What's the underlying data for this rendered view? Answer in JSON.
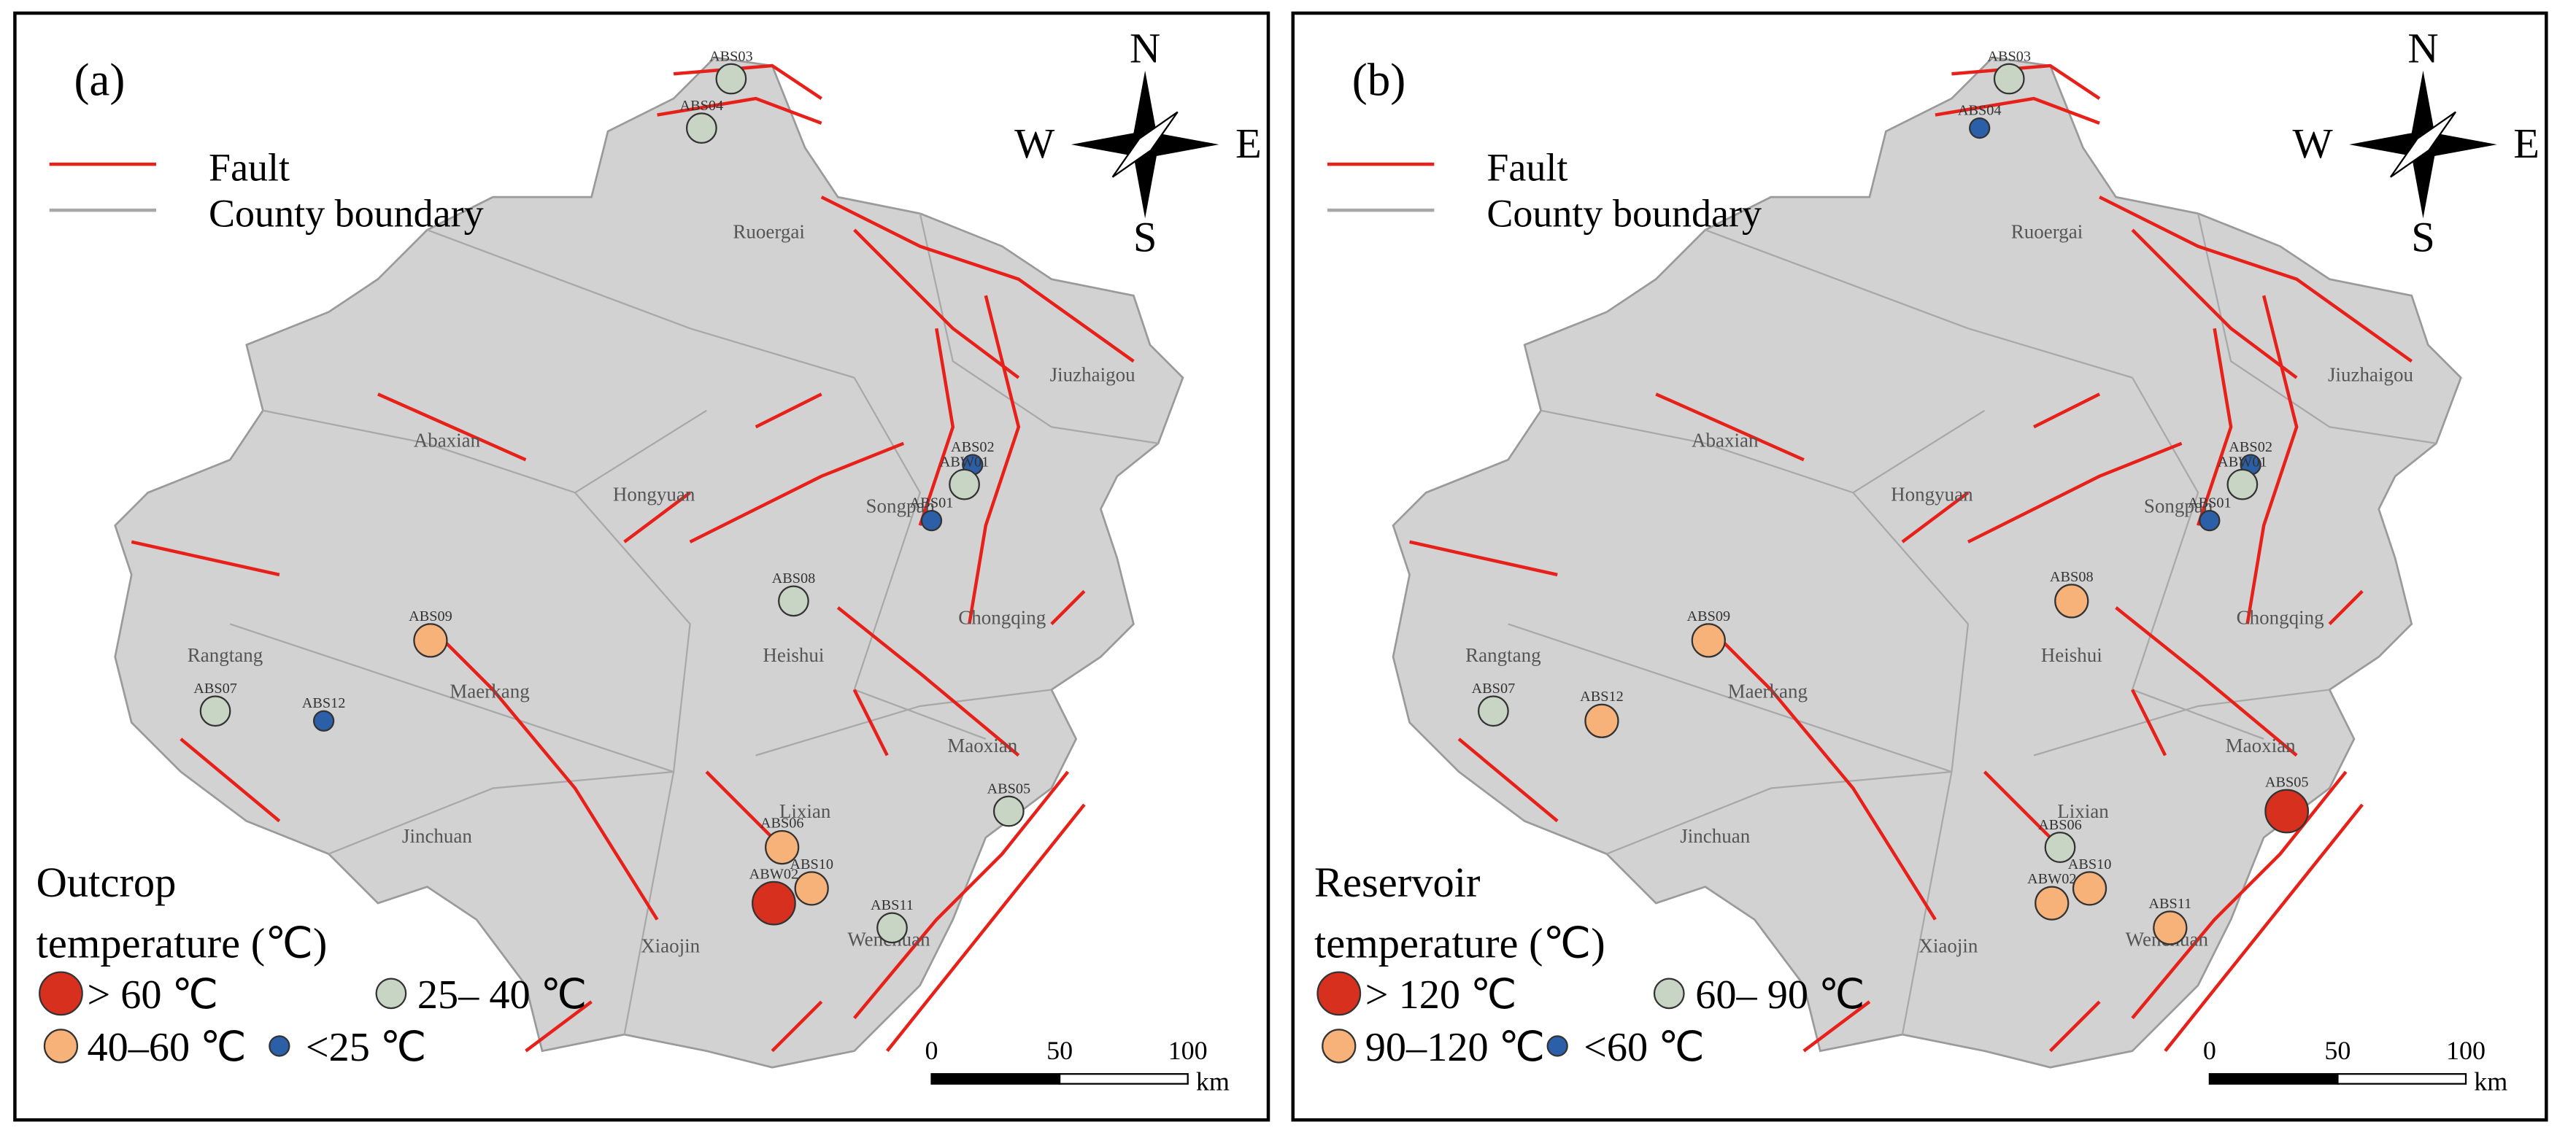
{
  "panels": [
    {
      "label": "(a)",
      "legend": [
        "Fault",
        "County boundary"
      ],
      "compass": [
        "N",
        "E",
        "S",
        "W"
      ],
      "places": [
        "Ruoergai",
        "Jiuzhaigou",
        "Abaxian",
        "Hongyuan",
        "Songpan",
        "Chongqing",
        "Heishui",
        "Rangtang",
        "Maerkang",
        "Maoxian",
        "Lixian",
        "Jinchuan",
        "Xiaojin",
        "Wenchuan"
      ],
      "stations": [
        {
          "label": "ABS03",
          "class": 1
        },
        {
          "label": "ABS04",
          "class": 1
        },
        {
          "label": "ABS02",
          "class": 3
        },
        {
          "label": "ABW01",
          "class": 1
        },
        {
          "label": "ABS01",
          "class": 3
        },
        {
          "label": "ABS08",
          "class": 1
        },
        {
          "label": "ABS09",
          "class": 2
        },
        {
          "label": "ABS07",
          "class": 1
        },
        {
          "label": "ABS12",
          "class": 3
        },
        {
          "label": "ABS05",
          "class": 1
        },
        {
          "label": "ABS06",
          "class": 2
        },
        {
          "label": "ABW02",
          "class": 0
        },
        {
          "label": "ABS10",
          "class": 2
        },
        {
          "label": "ABS11",
          "class": 1
        }
      ],
      "class_title": [
        "Outcrop",
        "temperature (℃)"
      ],
      "classes": [
        {
          "label": "> 60 ℃",
          "color": "#d7301f"
        },
        {
          "label": "25– 40 ℃",
          "color": "#c9d5c4"
        },
        {
          "label": "40–60 ℃",
          "color": "#f7b27a"
        },
        {
          "label": "<25 ℃",
          "color": "#2b5fa8"
        }
      ],
      "scale": {
        "ticks": [
          0,
          50,
          100
        ],
        "unit": "km"
      }
    },
    {
      "label": "(b)",
      "legend": [
        "Fault",
        "County boundary"
      ],
      "compass": [
        "N",
        "E",
        "S",
        "W"
      ],
      "places": [
        "Ruoergai",
        "Jiuzhaigou",
        "Abaxian",
        "Hongyuan",
        "Songpan",
        "Chongqing",
        "Heishui",
        "Rangtang",
        "Maerkang",
        "Maoxian",
        "Lixian",
        "Jinchuan",
        "Xiaojin",
        "Wenchuan"
      ],
      "stations": [
        {
          "label": "ABS03",
          "class": 1
        },
        {
          "label": "ABS04",
          "class": 3
        },
        {
          "label": "ABS02",
          "class": 3
        },
        {
          "label": "ABW01",
          "class": 1
        },
        {
          "label": "ABS01",
          "class": 3
        },
        {
          "label": "ABS08",
          "class": 2
        },
        {
          "label": "ABS09",
          "class": 2
        },
        {
          "label": "ABS07",
          "class": 1
        },
        {
          "label": "ABS12",
          "class": 2
        },
        {
          "label": "ABS05",
          "class": 0
        },
        {
          "label": "ABS06",
          "class": 1
        },
        {
          "label": "ABW02",
          "class": 2
        },
        {
          "label": "ABS10",
          "class": 2
        },
        {
          "label": "ABS11",
          "class": 2
        }
      ],
      "class_title": [
        "Reservoir",
        "temperature (℃)"
      ],
      "classes": [
        {
          "label": "> 120 ℃",
          "color": "#d7301f"
        },
        {
          "label": "60– 90 ℃",
          "color": "#c9d5c4"
        },
        {
          "label": "90–120 ℃",
          "color": "#f7b27a"
        },
        {
          "label": "<60 ℃",
          "color": "#2b5fa8"
        }
      ],
      "scale": {
        "ticks": [
          0,
          50,
          100
        ],
        "unit": "km"
      }
    }
  ]
}
